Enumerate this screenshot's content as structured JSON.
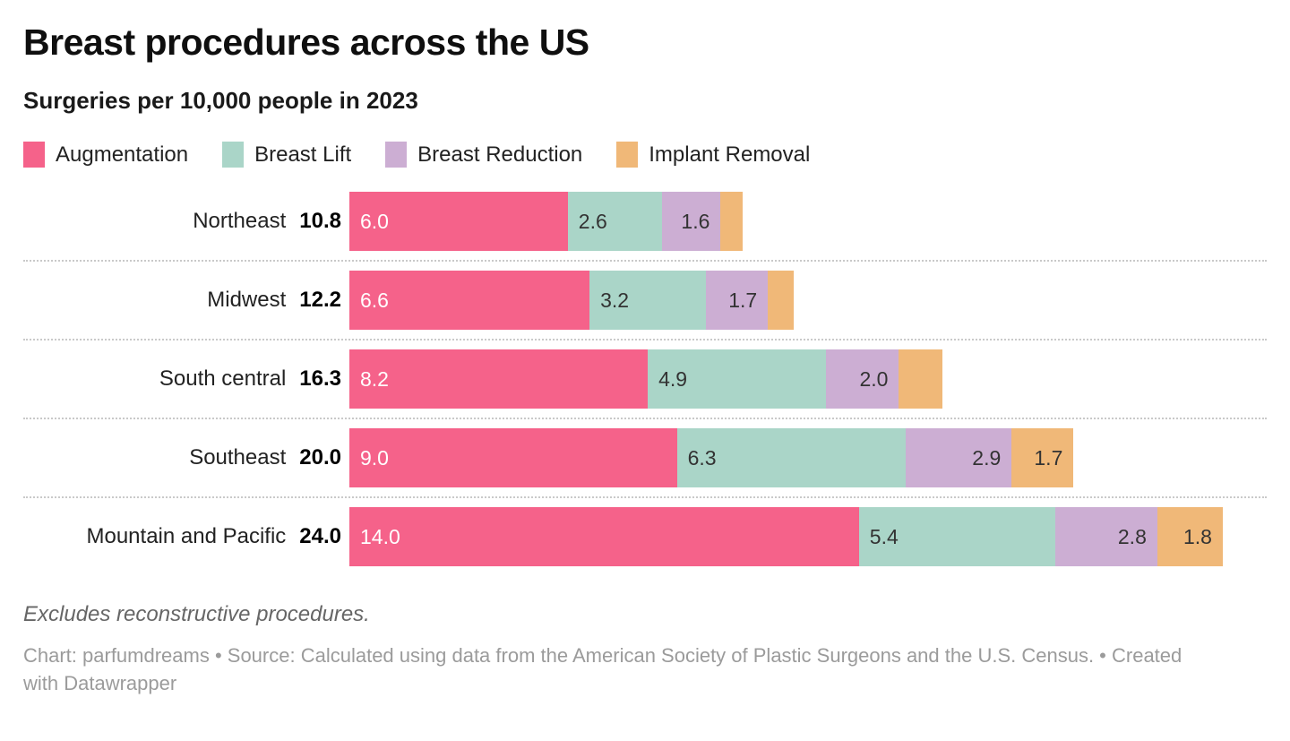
{
  "header": {
    "title": "Breast procedures across the US",
    "subtitle": "Surgeries per 10,000 people in 2023"
  },
  "legend": {
    "items": [
      {
        "label": "Augmentation",
        "color": "#F5628A"
      },
      {
        "label": "Breast Lift",
        "color": "#AAD5C8"
      },
      {
        "label": "Breast Reduction",
        "color": "#CCAED3"
      },
      {
        "label": "Implant Removal",
        "color": "#F0B878"
      }
    ]
  },
  "chart_data": {
    "type": "bar",
    "orientation": "horizontal-stacked",
    "title": "Breast procedures across the US",
    "subtitle": "Surgeries per 10,000 people in 2023",
    "xlim": [
      0,
      24
    ],
    "grid": false,
    "legend_position": "top",
    "categories": [
      "Northeast",
      "Midwest",
      "South central",
      "Southeast",
      "Mountain and Pacific"
    ],
    "totals": [
      "10.8",
      "12.2",
      "16.3",
      "20.0",
      "24.0"
    ],
    "series": [
      {
        "name": "Augmentation",
        "color": "#F5628A",
        "values": [
          6.0,
          6.6,
          8.2,
          9.0,
          14.0
        ],
        "labels": [
          "6.0",
          "6.6",
          "8.2",
          "9.0",
          "14.0"
        ],
        "label_color": "#FFFFFF",
        "label_align": "left"
      },
      {
        "name": "Breast Lift",
        "color": "#AAD5C8",
        "values": [
          2.6,
          3.2,
          4.9,
          6.3,
          5.4
        ],
        "labels": [
          "2.6",
          "3.2",
          "4.9",
          "6.3",
          "5.4"
        ],
        "label_color": "#333333",
        "label_align": "left"
      },
      {
        "name": "Breast Reduction",
        "color": "#CCAED3",
        "values": [
          1.6,
          1.7,
          2.0,
          2.9,
          2.8
        ],
        "labels": [
          "1.6",
          "1.7",
          "2.0",
          "2.9",
          "2.8"
        ],
        "label_color": "#333333",
        "label_align": "right"
      },
      {
        "name": "Implant Removal",
        "color": "#F0B878",
        "values": [
          0.6,
          0.7,
          1.2,
          1.7,
          1.8
        ],
        "labels": [
          "",
          "",
          "",
          "1.7",
          "1.8"
        ],
        "label_color": "#333333",
        "label_align": "right"
      }
    ]
  },
  "footer": {
    "note": "Excludes reconstructive procedures.",
    "byline": "Chart: parfumdreams • Source: Calculated using data from the American Society of Plastic Surgeons and the U.S. Census. • Created with Datawrapper"
  }
}
